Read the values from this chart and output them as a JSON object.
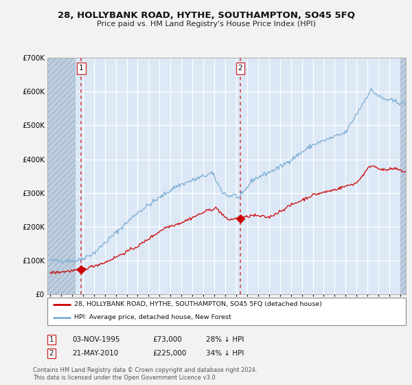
{
  "title": "28, HOLLYBANK ROAD, HYTHE, SOUTHAMPTON, SO45 5FQ",
  "subtitle": "Price paid vs. HM Land Registry's House Price Index (HPI)",
  "red_label": "28, HOLLYBANK ROAD, HYTHE, SOUTHAMPTON, SO45 5FQ (detached house)",
  "blue_label": "HPI: Average price, detached house, New Forest",
  "sale1_date": "03-NOV-1995",
  "sale1_price": 73000,
  "sale1_hpi": "28% ↓ HPI",
  "sale2_date": "21-MAY-2010",
  "sale2_price": 225000,
  "sale2_hpi": "34% ↓ HPI",
  "footnote": "Contains HM Land Registry data © Crown copyright and database right 2024.\nThis data is licensed under the Open Government Licence v3.0.",
  "red_color": "#cc0000",
  "blue_color": "#7aadd4",
  "bg_color": "#dce8f5",
  "fig_bg": "#f0f0f0",
  "hatch_color": "#c0cfe0",
  "grid_color": "#ffffff",
  "vline_color": "#cc3333",
  "ylim": [
    0,
    700000
  ],
  "xlim_start": 1992.75,
  "xlim_end": 2025.5,
  "hatch_end": 1995.25,
  "hatch_right_start": 2025.0,
  "sale1_x": 1995.836,
  "sale2_x": 2010.38,
  "sale1_y": 73000,
  "sale2_y": 225000
}
